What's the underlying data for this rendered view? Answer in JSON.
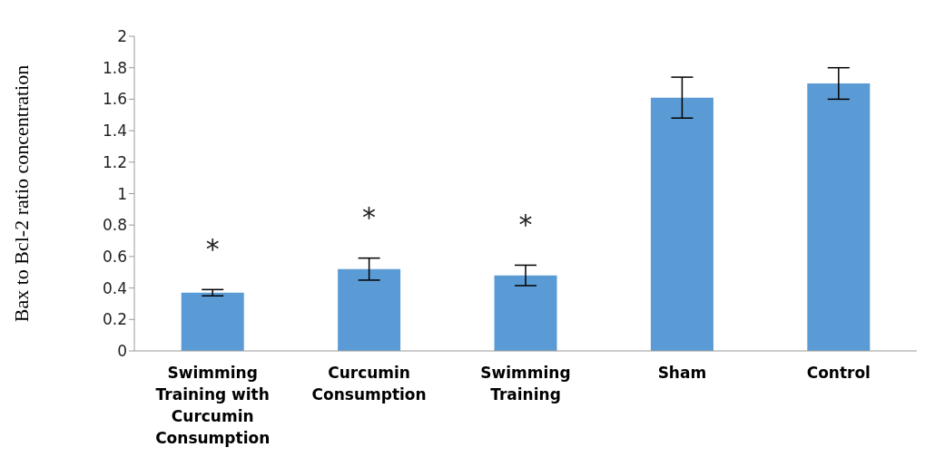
{
  "chart_data": {
    "type": "bar",
    "ylabel": "Bax to Bcl-2 ratio concentration",
    "categories": [
      "Swimming Training with Curcumin Consumption",
      "Curcumin Consumption",
      "Swimming Training",
      "Sham",
      "Control"
    ],
    "values": [
      0.37,
      0.52,
      0.48,
      1.61,
      1.7
    ],
    "errors": [
      0.02,
      0.07,
      0.065,
      0.13,
      0.1
    ],
    "color": "#5b9bd5",
    "ylim": [
      0,
      2
    ],
    "yticks": [
      0,
      0.2,
      0.4,
      0.6,
      0.8,
      1,
      1.2,
      1.4,
      1.6,
      1.8,
      2
    ],
    "grid": false,
    "legend": false,
    "annotations": [
      "*",
      "*",
      "*"
    ]
  }
}
